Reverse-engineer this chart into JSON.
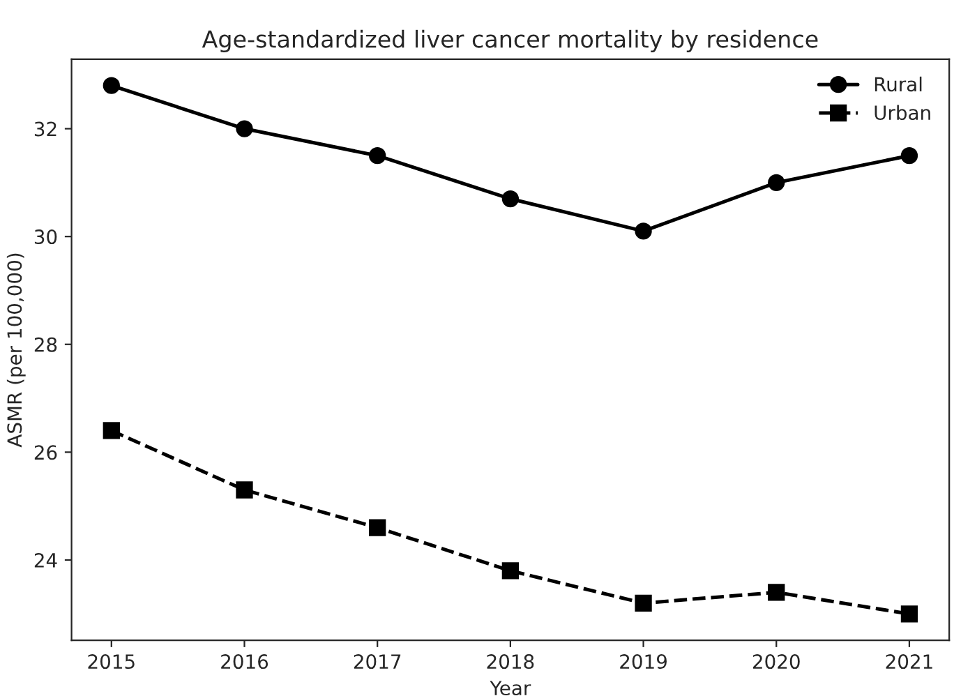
{
  "chart_data": {
    "type": "line",
    "title": "Age-standardized liver cancer mortality by residence",
    "xlabel": "Year",
    "ylabel": "ASMR (per 100,000)",
    "x": [
      2015,
      2016,
      2017,
      2018,
      2019,
      2020,
      2021
    ],
    "series": [
      {
        "name": "Rural",
        "color": "#000000",
        "marker": "circle",
        "line_style": "solid",
        "values": [
          32.8,
          32.0,
          31.5,
          30.7,
          30.1,
          31.0,
          31.5
        ]
      },
      {
        "name": "Urban",
        "color": "#000000",
        "marker": "square",
        "line_style": "dashed",
        "values": [
          26.4,
          25.3,
          24.6,
          23.8,
          23.2,
          23.4,
          23.0
        ]
      }
    ],
    "xlim": [
      2014.7,
      2021.3
    ],
    "xticks": [
      2015,
      2016,
      2017,
      2018,
      2019,
      2020,
      2021
    ],
    "ylim": [
      22.51,
      33.29
    ],
    "yticks": [
      24,
      26,
      28,
      30,
      32
    ],
    "grid": false,
    "legend": "top right"
  }
}
